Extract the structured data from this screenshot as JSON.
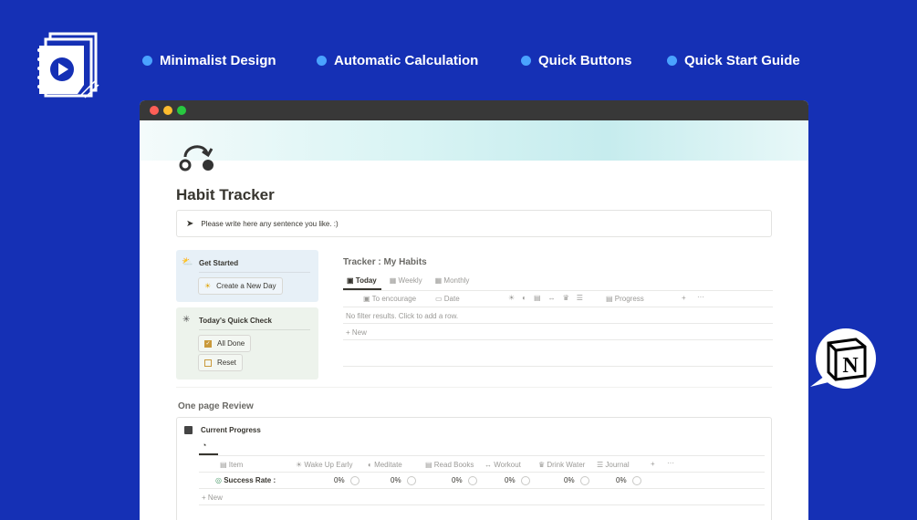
{
  "features": [
    "Minimalist Design",
    "Automatic Calculation",
    "Quick Buttons",
    "Quick Start Guide"
  ],
  "colors": {
    "background": "#1530b5",
    "bullet": "#4aa3ff",
    "get_started_bg": "#e7f0f7",
    "quick_check_bg": "#edf3ec",
    "checkbox": "#c99a3c"
  },
  "page": {
    "title": "Habit Tracker",
    "callout": "Please write here any sentence you like. :)"
  },
  "get_started": {
    "title": "Get Started",
    "button": "Create a New Day"
  },
  "quick_check": {
    "title": "Today's Quick Check",
    "buttons": [
      "All Done",
      "Reset"
    ]
  },
  "tracker": {
    "title": "Tracker : My Habits",
    "tabs": [
      "Today",
      "Weekly",
      "Monthly"
    ],
    "columns": {
      "encourage": "To encourage",
      "date": "Date",
      "progress": "Progress"
    },
    "empty": "No filter results. Click to add a row.",
    "new": "New"
  },
  "review": {
    "heading": "One page Review",
    "title": "Current Progress",
    "columns": [
      "Item",
      "Wake Up Early",
      "Meditate",
      "Read Books",
      "Workout",
      "Drink Water",
      "Journal"
    ],
    "row_label": "Success Rate :",
    "values": [
      "0%",
      "0%",
      "0%",
      "0%",
      "0%",
      "0%"
    ],
    "new": "New"
  }
}
